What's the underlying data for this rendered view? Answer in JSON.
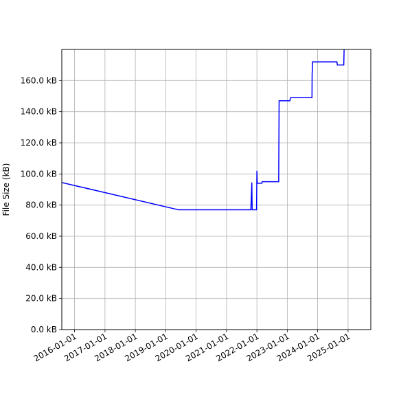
{
  "chart_data": {
    "type": "line",
    "title": "",
    "xlabel": "",
    "ylabel": "File Size (kB)",
    "xlim": [
      "2015-08-01",
      "2025-10-01"
    ],
    "ylim": [
      0,
      180
    ],
    "grid": true,
    "x_ticks": [
      {
        "date": "2016-01-01",
        "label": "2016-01-01"
      },
      {
        "date": "2017-01-01",
        "label": "2017-01-01"
      },
      {
        "date": "2018-01-01",
        "label": "2018-01-01"
      },
      {
        "date": "2019-01-01",
        "label": "2019-01-01"
      },
      {
        "date": "2020-01-01",
        "label": "2020-01-01"
      },
      {
        "date": "2021-01-01",
        "label": "2021-01-01"
      },
      {
        "date": "2022-01-01",
        "label": "2022-01-01"
      },
      {
        "date": "2023-01-01",
        "label": "2023-01-01"
      },
      {
        "date": "2024-01-01",
        "label": "2024-01-01"
      },
      {
        "date": "2025-01-01",
        "label": "2025-01-01"
      }
    ],
    "y_ticks": [
      {
        "value": 0,
        "label": "0.0 kB"
      },
      {
        "value": 20,
        "label": "20.0 kB"
      },
      {
        "value": 40,
        "label": "40.0 kB"
      },
      {
        "value": 60,
        "label": "60.0 kB"
      },
      {
        "value": 80,
        "label": "80.0 kB"
      },
      {
        "value": 100,
        "label": "100.0 kB"
      },
      {
        "value": 120,
        "label": "120.0 kB"
      },
      {
        "value": 140,
        "label": "140.0 kB"
      },
      {
        "value": 160,
        "label": "160.0 kB"
      }
    ],
    "series": [
      {
        "color": "#0000ff",
        "points": [
          {
            "x": "2015-08-01",
            "y": 94.5
          },
          {
            "x": "2019-06-01",
            "y": 77.0
          },
          {
            "x": "2021-10-20",
            "y": 77.0
          },
          {
            "x": "2021-11-01",
            "y": 94.5
          },
          {
            "x": "2021-11-05",
            "y": 77.0
          },
          {
            "x": "2021-12-28",
            "y": 77.0
          },
          {
            "x": "2022-01-01",
            "y": 102.0
          },
          {
            "x": "2022-01-05",
            "y": 94.0
          },
          {
            "x": "2022-03-01",
            "y": 94.0
          },
          {
            "x": "2022-03-05",
            "y": 95.0
          },
          {
            "x": "2022-09-20",
            "y": 95.0
          },
          {
            "x": "2022-09-25",
            "y": 147.0
          },
          {
            "x": "2023-02-01",
            "y": 147.0
          },
          {
            "x": "2023-02-10",
            "y": 149.0
          },
          {
            "x": "2023-10-25",
            "y": 149.0
          },
          {
            "x": "2023-10-27",
            "y": 165.0
          },
          {
            "x": "2023-10-29",
            "y": 165.5
          },
          {
            "x": "2023-11-01",
            "y": 172.0
          },
          {
            "x": "2024-08-20",
            "y": 172.0
          },
          {
            "x": "2024-08-25",
            "y": 170.0
          },
          {
            "x": "2024-11-10",
            "y": 170.0
          },
          {
            "x": "2024-11-15",
            "y": 182.0
          }
        ]
      }
    ]
  }
}
